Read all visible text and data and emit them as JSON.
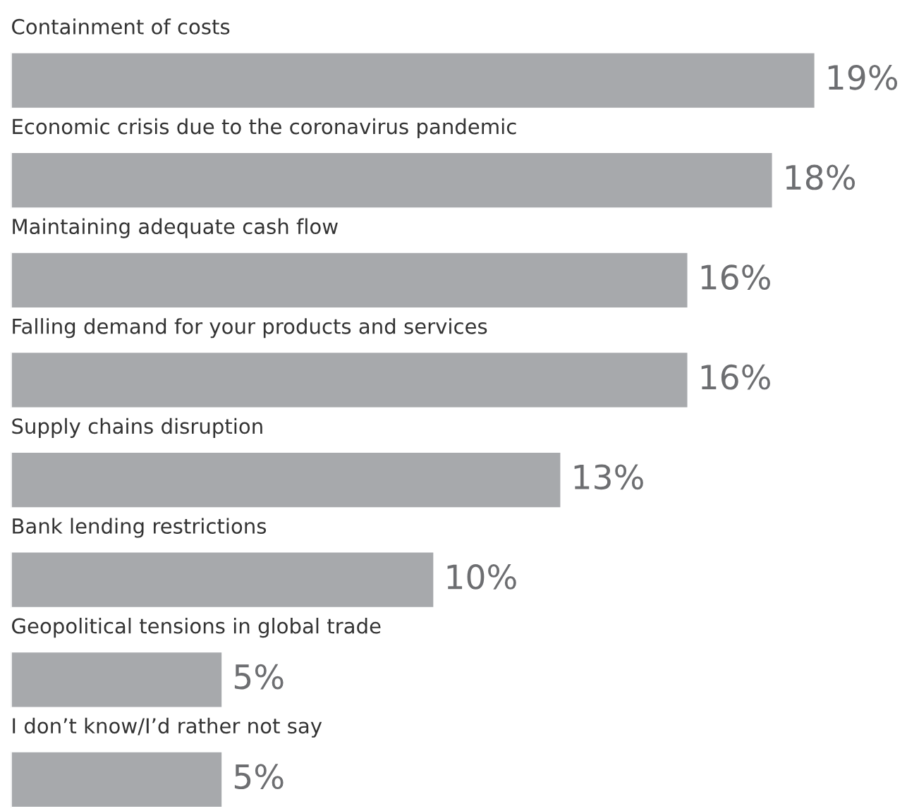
{
  "chart_data": {
    "type": "bar",
    "orientation": "horizontal",
    "color": "#a7a9ac",
    "categories": [
      "Containment of costs",
      "Economic crisis due to the coronavirus pandemic",
      "Maintaining adequate cash flow",
      "Falling demand for your products and services",
      "Supply chains disruption",
      "Bank lending restrictions",
      "Geopolitical tensions in global trade",
      "I don’t know/I’d rather not say"
    ],
    "values": [
      19,
      18,
      16,
      16,
      13,
      10,
      5,
      5
    ],
    "value_labels": [
      "19%",
      "18%",
      "16%",
      "16%",
      "13%",
      "10%",
      "5%",
      "5%"
    ],
    "data_labels": false
  }
}
